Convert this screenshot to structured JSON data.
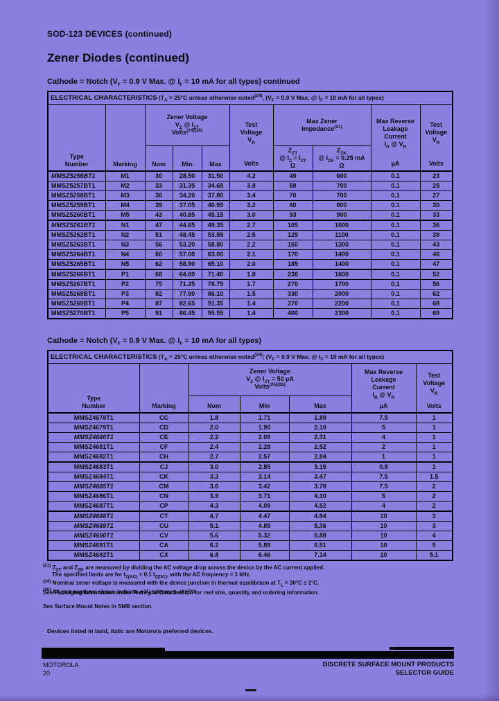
{
  "colors": {
    "page_bg": "#8c80de",
    "ink": "#0a0a12"
  },
  "header": {
    "section": "SOD-123 DEVICES (continued)",
    "title": "Zener Diodes (continued)"
  },
  "table1": {
    "cathode": "Cathode = Notch (V_F_ = 0.9 V Max. @ I_F_ = 10 mA for all types) continued",
    "ec_label": "ELECTRICAL CHARACTERISTICS",
    "ec_cond": "(T_A_ = 25°C unless otherwise noted^(24)^, (V_F_ = 0.9 V Max. @ I_F_ = 10 mA for all types)",
    "col_type": "Type\nNumber",
    "col_marking": "Marking",
    "col_zener": "Zener Voltage\nV_Z_ @ I_ZT_\nVolts^(24)(26)^",
    "col_nom": "Nom",
    "col_min": "Min",
    "col_max": "Max",
    "col_testv": "Test\nVoltage\nV_R_",
    "col_testv_unit": "Volts",
    "col_impedance": "Max Zener\nImpedance^(21)^",
    "col_zzt": "Z_ZT_\n@ I_Z_ = I_ZT_",
    "col_zzt_unit": "Ω",
    "col_zzk": "Z_ZK_\n@ I_ZK_ = 0.25 mA",
    "col_zzk_unit": "Ω",
    "col_leak": "Max Reverse\nLeakage\nCurrent\nI_R_ @ V_R_",
    "col_leak_unit": "µA",
    "col_testv2": "Test\nVoltage\nV_R_",
    "col_testv2_unit": "Volts",
    "groups": [
      {
        "rows": [
          {
            "type": "MMSZ5256BT1",
            "preferred": true,
            "cells": [
              "M1",
              "30",
              "28.50",
              "31.50",
              "4.2",
              "49",
              "600",
              "0.1",
              "23"
            ]
          },
          {
            "type": "MMSZ5257BT1",
            "preferred": false,
            "cells": [
              "M2",
              "33",
              "31.35",
              "34.65",
              "3.8",
              "58",
              "700",
              "0.1",
              "25"
            ]
          },
          {
            "type": "MMSZ5258BT1",
            "preferred": false,
            "cells": [
              "M3",
              "36",
              "34.20",
              "37.80",
              "3.4",
              "70",
              "700",
              "0.1",
              "27"
            ]
          },
          {
            "type": "MMSZ5259BT1",
            "preferred": false,
            "cells": [
              "M4",
              "39",
              "37.05",
              "40.95",
              "3.2",
              "80",
              "800",
              "0.1",
              "30"
            ]
          },
          {
            "type": "MMSZ5260BT1",
            "preferred": false,
            "cells": [
              "M5",
              "43",
              "40.85",
              "45.15",
              "3.0",
              "93",
              "900",
              "0.1",
              "33"
            ]
          }
        ]
      },
      {
        "rows": [
          {
            "type": "MMSZ5261BT1",
            "preferred": true,
            "cells": [
              "N1",
              "47",
              "44.65",
              "49.35",
              "2.7",
              "105",
              "1000",
              "0.1",
              "36"
            ]
          },
          {
            "type": "MMSZ5262BT1",
            "preferred": false,
            "cells": [
              "N2",
              "51",
              "48.45",
              "53.55",
              "2.5",
              "125",
              "1100",
              "0.1",
              "39"
            ]
          },
          {
            "type": "MMSZ5263BT1",
            "preferred": false,
            "cells": [
              "N3",
              "56",
              "53.20",
              "58.80",
              "2.2",
              "160",
              "1300",
              "0.1",
              "43"
            ]
          },
          {
            "type": "MMSZ5264BT1",
            "preferred": false,
            "cells": [
              "N4",
              "60",
              "57.00",
              "63.00",
              "2.1",
              "170",
              "1400",
              "0.1",
              "46"
            ]
          },
          {
            "type": "MMSZ5265BT1",
            "preferred": false,
            "cells": [
              "N5",
              "62",
              "58.90",
              "65.10",
              "2.0",
              "185",
              "1400",
              "0.1",
              "47"
            ]
          }
        ]
      },
      {
        "rows": [
          {
            "type": "MMSZ5266BT1",
            "preferred": false,
            "cells": [
              "P1",
              "68",
              "64.60",
              "71.40",
              "1.8",
              "230",
              "1600",
              "0.1",
              "52"
            ]
          },
          {
            "type": "MMSZ5267BT1",
            "preferred": false,
            "cells": [
              "P2",
              "75",
              "71.25",
              "78.75",
              "1.7",
              "270",
              "1700",
              "0.1",
              "56"
            ]
          },
          {
            "type": "MMSZ5268BT1",
            "preferred": false,
            "cells": [
              "P3",
              "82",
              "77.90",
              "86.10",
              "1.5",
              "330",
              "2000",
              "0.1",
              "62"
            ]
          },
          {
            "type": "MMSZ5269BT1",
            "preferred": false,
            "cells": [
              "P4",
              "87",
              "82.65",
              "91.35",
              "1.4",
              "370",
              "2200",
              "0.1",
              "68"
            ]
          },
          {
            "type": "MMSZ5270BT1",
            "preferred": false,
            "cells": [
              "P5",
              "91",
              "86.45",
              "95.55",
              "1.4",
              "400",
              "2300",
              "0.1",
              "69"
            ]
          }
        ]
      }
    ]
  },
  "table2": {
    "cathode": "Cathode = Notch (V_F_ = 0.9 V Max. @ I_F_ = 10 mA for all types)",
    "ec_label": "ELECTRICAL CHARACTERISTICS",
    "ec_cond": "(T_A_ = 25°C unless otherwise noted^(24)^; (V_F_ = 0.9 V Max. @ I_F_ = 10 mA for all types)",
    "col_type": "Type\nNumber",
    "col_marking": "Marking",
    "col_zener": "Zener Voltage\nV_Z_ @ I_ZT_ = 50 µA\nVolts^(24)(26)^",
    "col_nom": "Nom",
    "col_min": "Min",
    "col_max": "Max",
    "col_leak": "Max Reverse\nLeakage\nCurrent\nI_R_ @ V_R_",
    "col_leak_unit": "µA",
    "col_testv": "Test\nVoltage\nV_R_",
    "col_testv_unit": "Volts",
    "groups": [
      {
        "rows": [
          {
            "type": "MMSZ4678T1",
            "preferred": false,
            "cells": [
              "CC",
              "1.8",
              "1.71",
              "1.89",
              "7.5",
              "1"
            ]
          },
          {
            "type": "MMSZ4679T1",
            "preferred": false,
            "cells": [
              "CD",
              "2.0",
              "1.90",
              "2.10",
              "5",
              "1"
            ]
          },
          {
            "type": "MMSZ4680T1",
            "preferred": true,
            "cells": [
              "CE",
              "2.2",
              "2.09",
              "2.31",
              "4",
              "1"
            ]
          },
          {
            "type": "MMSZ4681T1",
            "preferred": false,
            "cells": [
              "CF",
              "2.4",
              "2.28",
              "2.52",
              "2",
              "1"
            ]
          },
          {
            "type": "MMSZ4682T1",
            "preferred": false,
            "cells": [
              "CH",
              "2.7",
              "2.57",
              "2.84",
              "1",
              "1"
            ]
          }
        ]
      },
      {
        "rows": [
          {
            "type": "MMSZ4683T1",
            "preferred": false,
            "cells": [
              "CJ",
              "3.0",
              "2.85",
              "3.15",
              "0.8",
              "1"
            ]
          },
          {
            "type": "MMSZ4684T1",
            "preferred": false,
            "cells": [
              "CK",
              "3.3",
              "3.14",
              "3.47",
              "7.5",
              "1.5"
            ]
          },
          {
            "type": "MMSZ4685T1",
            "preferred": true,
            "cells": [
              "CM",
              "3.6",
              "3.42",
              "3.78",
              "7.5",
              "2"
            ]
          },
          {
            "type": "MMSZ4686T1",
            "preferred": false,
            "cells": [
              "CN",
              "3.9",
              "3.71",
              "4.10",
              "5",
              "2"
            ]
          },
          {
            "type": "MMSZ4687T1",
            "preferred": false,
            "cells": [
              "CP",
              "4.3",
              "4.09",
              "4.52",
              "4",
              "2"
            ]
          }
        ]
      },
      {
        "rows": [
          {
            "type": "MMSZ4688T1",
            "preferred": true,
            "cells": [
              "CT",
              "4.7",
              "4.47",
              "4.94",
              "10",
              "3"
            ]
          },
          {
            "type": "MMSZ4689T1",
            "preferred": true,
            "cells": [
              "CU",
              "5.1",
              "4.85",
              "5.36",
              "10",
              "3"
            ]
          },
          {
            "type": "MMSZ4690T1",
            "preferred": true,
            "cells": [
              "CV",
              "5.6",
              "5.32",
              "5.88",
              "10",
              "4"
            ]
          },
          {
            "type": "MMSZ4691T1",
            "preferred": false,
            "cells": [
              "CA",
              "6.2",
              "5.89",
              "6.51",
              "10",
              "5"
            ]
          },
          {
            "type": "MMSZ4692T1",
            "preferred": false,
            "cells": [
              "CX",
              "6.8",
              "6.46",
              "7.14",
              "10",
              "5.1"
            ]
          }
        ]
      }
    ]
  },
  "footnotes": [
    {
      "ref": "(21)",
      "text": "Z_ZT_ and Z_ZK_ are measured by dividing the AC voltage drop across the device by the AC current applied.\nThe specified limits are for I_Z(AC)_ = 0.1 I_Z(DC)_, with the AC frequency = 1 kHz."
    },
    {
      "ref": "(24)",
      "text": "Nominal zener voltage is measured with the device junction in thermal equilibrium at T_L_ = 30°C ± 1°C."
    },
    {
      "ref": "(26)",
      "text": "All part numbers shown indicate a V_Z_ tolerance of ±5%."
    }
  ],
  "notes": [
    "See Packaging Information under Technical Data Section for reel size, quantity and ordering information.",
    "See Surface Mount Notes in SMB section."
  ],
  "preferred_note": "Devices listed in bold, italic are Motorola preferred devices.",
  "footer": {
    "brand": "MOTOROLA",
    "page_number": "20",
    "right_line1": "DISCRETE SURFACE MOUNT PRODUCTS",
    "right_line2": "SELECTOR GUIDE"
  }
}
